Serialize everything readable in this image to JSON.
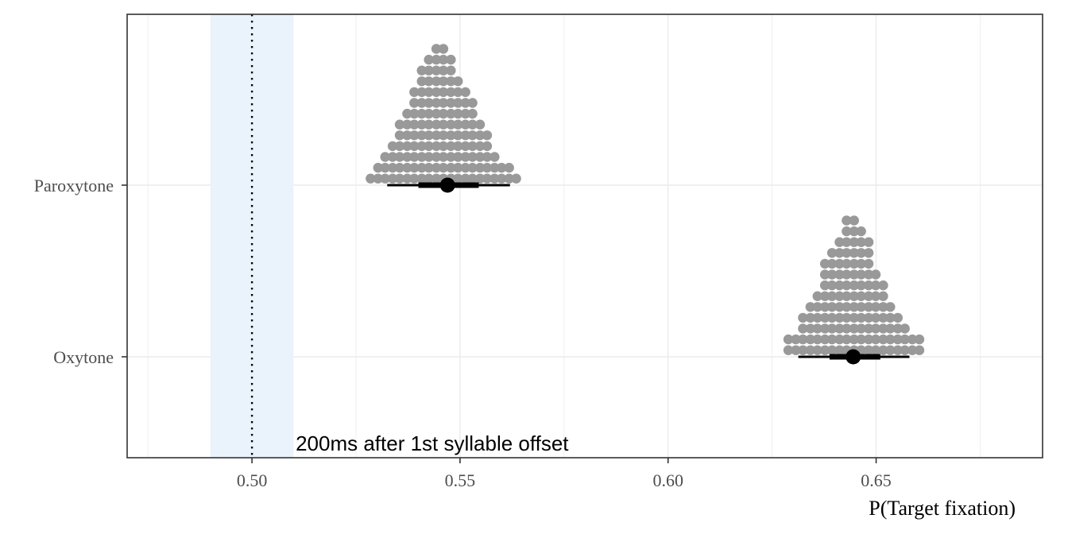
{
  "chart_data": {
    "type": "dotplot-interval",
    "title": "",
    "xlabel": "P(Target fixation)",
    "ylabel": "",
    "xlim": [
      0.47,
      0.69
    ],
    "x_ticks": [
      0.5,
      0.55,
      0.6,
      0.65
    ],
    "x_tick_labels": [
      "0.50",
      "0.55",
      "0.60",
      "0.65"
    ],
    "categories": [
      "Paroxytone",
      "Oxytone"
    ],
    "grid": true,
    "legend": "none",
    "reference_line": {
      "x": 0.5,
      "style": "dotted"
    },
    "reference_band": {
      "xmin": 0.49,
      "xmax": 0.51,
      "color": "#EAF3FB"
    },
    "annotation": {
      "text": "200ms after 1st syllable offset",
      "x": 0.5105
    },
    "dot_color": "#999999",
    "interval_color": "#000000",
    "dot_bin_width": 0.00175,
    "series": [
      {
        "category": "Paroxytone",
        "point": 0.547,
        "interval_66": [
          0.54,
          0.5545
        ],
        "interval_95": [
          0.5325,
          0.562
        ],
        "dot_columns": [
          {
            "x": 0.5285,
            "count": 1
          },
          {
            "x": 0.5303,
            "count": 2
          },
          {
            "x": 0.532,
            "count": 3
          },
          {
            "x": 0.5338,
            "count": 4
          },
          {
            "x": 0.5355,
            "count": 6
          },
          {
            "x": 0.5373,
            "count": 7
          },
          {
            "x": 0.539,
            "count": 9
          },
          {
            "x": 0.5408,
            "count": 11
          },
          {
            "x": 0.5425,
            "count": 12
          },
          {
            "x": 0.5443,
            "count": 13
          },
          {
            "x": 0.546,
            "count": 13
          },
          {
            "x": 0.5478,
            "count": 12
          },
          {
            "x": 0.5495,
            "count": 10
          },
          {
            "x": 0.5513,
            "count": 9
          },
          {
            "x": 0.553,
            "count": 8
          },
          {
            "x": 0.5548,
            "count": 6
          },
          {
            "x": 0.5565,
            "count": 5
          },
          {
            "x": 0.5583,
            "count": 3
          },
          {
            "x": 0.56,
            "count": 2
          },
          {
            "x": 0.5618,
            "count": 2
          },
          {
            "x": 0.5635,
            "count": 1
          }
        ]
      },
      {
        "category": "Oxytone",
        "point": 0.6445,
        "interval_66": [
          0.6388,
          0.651
        ],
        "interval_95": [
          0.6313,
          0.658
        ],
        "dot_columns": [
          {
            "x": 0.6289,
            "count": 2
          },
          {
            "x": 0.6307,
            "count": 2
          },
          {
            "x": 0.6324,
            "count": 4
          },
          {
            "x": 0.6342,
            "count": 5
          },
          {
            "x": 0.6359,
            "count": 6
          },
          {
            "x": 0.6377,
            "count": 9
          },
          {
            "x": 0.6394,
            "count": 10
          },
          {
            "x": 0.6412,
            "count": 11
          },
          {
            "x": 0.6429,
            "count": 13
          },
          {
            "x": 0.6447,
            "count": 13
          },
          {
            "x": 0.6464,
            "count": 12
          },
          {
            "x": 0.6482,
            "count": 11
          },
          {
            "x": 0.6499,
            "count": 8
          },
          {
            "x": 0.6517,
            "count": 7
          },
          {
            "x": 0.6534,
            "count": 5
          },
          {
            "x": 0.6552,
            "count": 4
          },
          {
            "x": 0.6569,
            "count": 3
          },
          {
            "x": 0.6587,
            "count": 2
          },
          {
            "x": 0.6604,
            "count": 2
          }
        ]
      }
    ]
  }
}
